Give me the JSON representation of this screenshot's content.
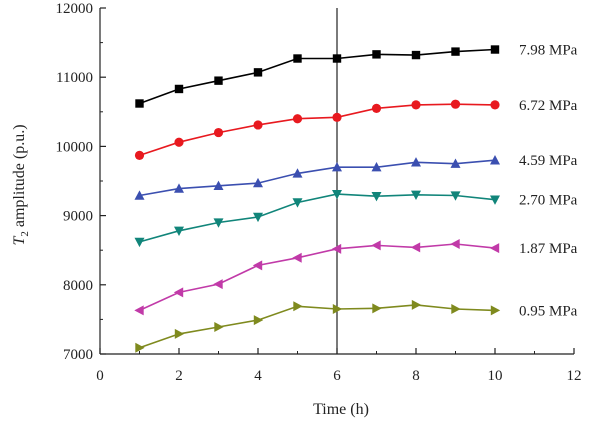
{
  "chart_data": {
    "type": "line",
    "title": "",
    "xlabel": "Time (h)",
    "ylabel_symbol": "T",
    "ylabel_subscript": "2",
    "ylabel_rest": " amplitude (p.u.)",
    "xlim": [
      0,
      12
    ],
    "ylim": [
      7000,
      12000
    ],
    "x_ticks": [
      "0",
      "2",
      "4",
      "6",
      "8",
      "10",
      "12"
    ],
    "y_ticks": [
      "7000",
      "8000",
      "9000",
      "10000",
      "11000",
      "12000"
    ],
    "grid": false,
    "reference_line_x": 6,
    "x": [
      1,
      2,
      3,
      4,
      5,
      6,
      7,
      8,
      9,
      10
    ],
    "series": [
      {
        "name": "7.98 MPa",
        "color": "#000000",
        "marker": "square",
        "values": [
          10620,
          10830,
          10950,
          11070,
          11270,
          11270,
          11330,
          11320,
          11370,
          11400
        ]
      },
      {
        "name": "6.72 MPa",
        "color": "#e8191f",
        "marker": "circle",
        "values": [
          9870,
          10060,
          10200,
          10310,
          10400,
          10420,
          10550,
          10600,
          10610,
          10600
        ]
      },
      {
        "name": "4.59 MPa",
        "color": "#3b4fb0",
        "marker": "triangle-up",
        "values": [
          9290,
          9390,
          9430,
          9470,
          9610,
          9700,
          9700,
          9770,
          9750,
          9800
        ]
      },
      {
        "name": "2.70 MPa",
        "color": "#11857a",
        "marker": "triangle-down",
        "values": [
          8620,
          8780,
          8900,
          8980,
          9190,
          9310,
          9280,
          9300,
          9290,
          9230
        ]
      },
      {
        "name": "1.87 MPa",
        "color": "#c13aa8",
        "marker": "triangle-left",
        "values": [
          7630,
          7890,
          8010,
          8280,
          8390,
          8520,
          8570,
          8540,
          8590,
          8530
        ]
      },
      {
        "name": "0.95 MPa",
        "color": "#7f8a1e",
        "marker": "triangle-right",
        "values": [
          7090,
          7290,
          7390,
          7490,
          7690,
          7650,
          7660,
          7710,
          7650,
          7630
        ]
      }
    ]
  }
}
